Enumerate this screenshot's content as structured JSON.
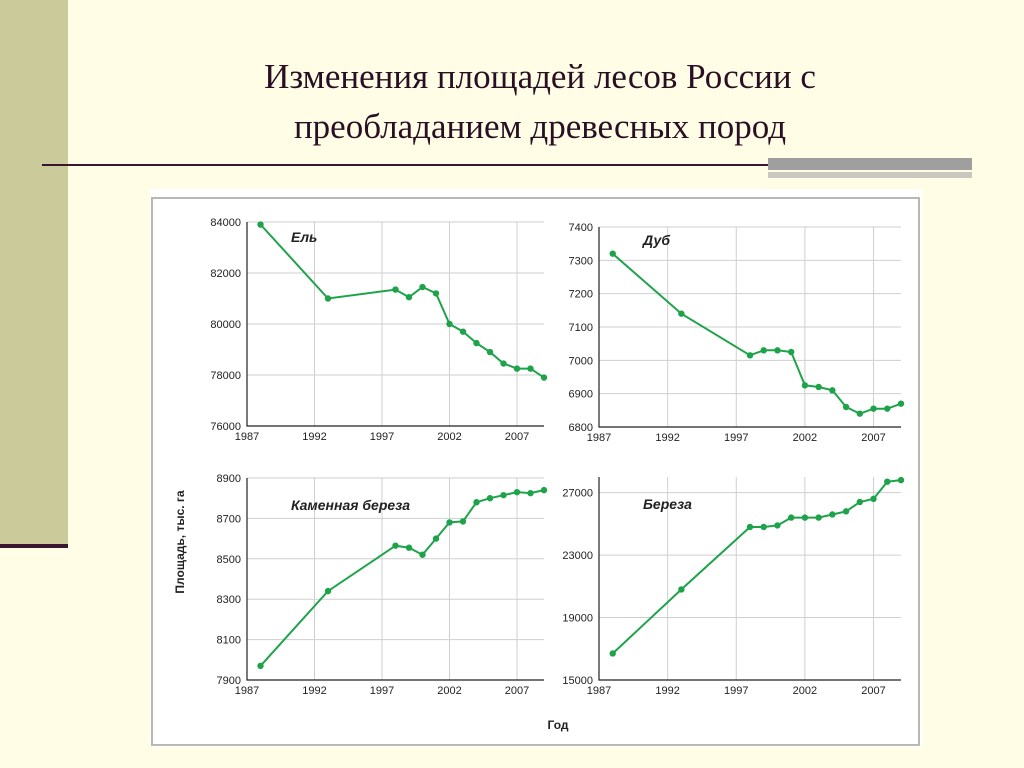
{
  "slide": {
    "title_line1": "Изменения площадей лесов России с",
    "title_line2": "преобладанием древесных пород"
  },
  "colors": {
    "series": "#1fa34a",
    "background": "#fffde6",
    "left_bar": "#cbca9b",
    "rule": "#3a1530"
  },
  "chart_data": [
    {
      "type": "line",
      "title": "Ель",
      "xlabel": "Год",
      "ylabel": "Площадь, тыс. га",
      "xlim": [
        1987,
        2009
      ],
      "ylim": [
        76000,
        84000
      ],
      "xticks": [
        1987,
        1992,
        1997,
        2002,
        2007
      ],
      "yticks": [
        76000,
        78000,
        80000,
        82000,
        84000
      ],
      "x": [
        1988,
        1993,
        1998,
        1999,
        2000,
        2001,
        2002,
        2003,
        2004,
        2005,
        2006,
        2007,
        2008,
        2009
      ],
      "y": [
        83900,
        81000,
        81350,
        81050,
        81450,
        81200,
        80000,
        79700,
        79250,
        78900,
        78450,
        78250,
        78250,
        77900
      ]
    },
    {
      "type": "line",
      "title": "Дуб",
      "xlabel": "Год",
      "ylabel": "Площадь, тыс. га",
      "xlim": [
        1987,
        2009
      ],
      "ylim": [
        6800,
        7400
      ],
      "xticks": [
        1987,
        1992,
        1997,
        2002,
        2007
      ],
      "yticks": [
        6800,
        6900,
        7000,
        7100,
        7200,
        7300,
        7400
      ],
      "x": [
        1988,
        1993,
        1998,
        1999,
        2000,
        2001,
        2002,
        2003,
        2004,
        2005,
        2006,
        2007,
        2008,
        2009
      ],
      "y": [
        7320,
        7140,
        7015,
        7030,
        7030,
        7025,
        6925,
        6920,
        6910,
        6860,
        6840,
        6855,
        6855,
        6870
      ]
    },
    {
      "type": "line",
      "title": "Каменная береза",
      "xlabel": "Год",
      "ylabel": "Площадь, тыс. га",
      "xlim": [
        1987,
        2009
      ],
      "ylim": [
        7900,
        8900
      ],
      "xticks": [
        1987,
        1992,
        1997,
        2002,
        2007
      ],
      "yticks": [
        7900,
        8100,
        8300,
        8500,
        8700,
        8900
      ],
      "x": [
        1988,
        1993,
        1998,
        1999,
        2000,
        2001,
        2002,
        2003,
        2004,
        2005,
        2006,
        2007,
        2008,
        2009
      ],
      "y": [
        7970,
        8340,
        8565,
        8555,
        8520,
        8600,
        8680,
        8685,
        8780,
        8800,
        8815,
        8830,
        8825,
        8840
      ]
    },
    {
      "type": "line",
      "title": "Береза",
      "xlabel": "Год",
      "ylabel": "Площадь, тыс. га",
      "xlim": [
        1987,
        2009
      ],
      "ylim": [
        15000,
        28000
      ],
      "xticks": [
        1987,
        1992,
        1997,
        2002,
        2007
      ],
      "yticks": [
        15000,
        19000,
        23000,
        27000
      ],
      "x": [
        1988,
        1993,
        1998,
        1999,
        2000,
        2001,
        2002,
        2003,
        2004,
        2005,
        2006,
        2007,
        2008,
        2009
      ],
      "y": [
        16700,
        20800,
        24800,
        24800,
        24900,
        25400,
        25400,
        25400,
        25600,
        25800,
        26400,
        26600,
        27700,
        27800
      ]
    }
  ],
  "figure": {
    "ylabel": "Площадь, тыс. га",
    "xlabel": "Год"
  }
}
